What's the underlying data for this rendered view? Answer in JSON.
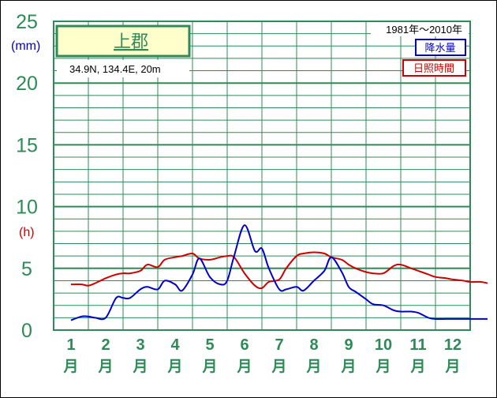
{
  "chart_data": {
    "type": "line",
    "title": "上郡",
    "location": "34.9N,  134.4E,  20m",
    "period": "1981年〜2010年",
    "categories": [
      "1",
      "2",
      "3",
      "4",
      "5",
      "6",
      "7",
      "8",
      "9",
      "10",
      "11",
      "12"
    ],
    "month_suffix": "月",
    "y_ticks": [
      "0",
      "5",
      "10",
      "15",
      "20",
      "25"
    ],
    "y_unit_precip": "(mm)",
    "y_unit_sun": "(h)",
    "ylim": [
      0,
      25
    ],
    "grid": true,
    "legend_position": "top-right",
    "series": [
      {
        "name": "降水量",
        "color": "#0000cc",
        "x": [
          0.5,
          0.8,
          1.0,
          1.2,
          1.5,
          1.8,
          2.0,
          2.2,
          2.5,
          2.7,
          3.0,
          3.2,
          3.5,
          3.7,
          4.0,
          4.2,
          4.5,
          4.8,
          5.0,
          5.2,
          5.5,
          5.8,
          6.0,
          6.2,
          6.5,
          6.7,
          7.0,
          7.2,
          7.5,
          7.8,
          8.0,
          8.3,
          8.5,
          8.7,
          9.0,
          9.2,
          9.5,
          9.8,
          10.0,
          10.3,
          10.5,
          10.8,
          11.0,
          11.3,
          11.5,
          11.8,
          12.0,
          12.3,
          12.5
        ],
        "y": [
          0.8,
          1.1,
          1.1,
          1.0,
          1.0,
          2.6,
          2.6,
          2.6,
          3.3,
          3.5,
          3.3,
          4.0,
          3.7,
          3.2,
          4.5,
          5.8,
          4.3,
          3.7,
          4.0,
          6.0,
          8.5,
          6.4,
          6.6,
          5.0,
          3.3,
          3.3,
          3.5,
          3.2,
          4.0,
          4.8,
          5.9,
          4.7,
          3.5,
          3.1,
          2.5,
          2.1,
          2.0,
          1.6,
          1.5,
          1.5,
          1.4,
          1.0,
          0.9,
          0.9,
          0.9,
          0.9,
          0.9,
          0.9,
          0.9
        ]
      },
      {
        "name": "日照時間",
        "color": "#cc0000",
        "x": [
          0.5,
          0.8,
          1.0,
          1.2,
          1.5,
          1.8,
          2.0,
          2.2,
          2.5,
          2.7,
          3.0,
          3.2,
          3.5,
          3.7,
          4.0,
          4.2,
          4.5,
          4.8,
          5.0,
          5.2,
          5.5,
          5.8,
          6.0,
          6.2,
          6.5,
          6.7,
          7.0,
          7.2,
          7.5,
          7.8,
          8.0,
          8.3,
          8.5,
          8.7,
          9.0,
          9.2,
          9.5,
          9.8,
          10.0,
          10.3,
          10.5,
          10.8,
          11.0,
          11.3,
          11.5,
          11.8,
          12.0,
          12.3,
          12.5
        ],
        "y": [
          3.7,
          3.7,
          3.6,
          3.8,
          4.2,
          4.5,
          4.6,
          4.6,
          4.8,
          5.3,
          5.1,
          5.7,
          5.9,
          6.0,
          6.2,
          5.8,
          5.7,
          5.9,
          6.0,
          5.9,
          4.6,
          3.6,
          3.4,
          3.9,
          4.1,
          5.0,
          6.0,
          6.2,
          6.3,
          6.2,
          5.9,
          5.7,
          5.3,
          5.0,
          4.7,
          4.6,
          4.6,
          5.2,
          5.3,
          5.0,
          4.8,
          4.5,
          4.3,
          4.2,
          4.1,
          4.0,
          3.9,
          3.9,
          3.8
        ]
      }
    ]
  }
}
